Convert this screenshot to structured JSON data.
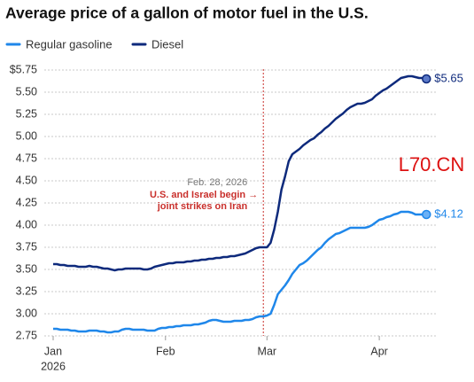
{
  "chart_data": {
    "type": "line",
    "title": "Average price of a gallon of motor fuel in the U.S.",
    "categories": [
      "Jan",
      null,
      null,
      null,
      null,
      null,
      null,
      null,
      null,
      null,
      null,
      null,
      null,
      null,
      null,
      null,
      null,
      null,
      null,
      null,
      null,
      null,
      null,
      null,
      null,
      null,
      null,
      null,
      null,
      null,
      null,
      "Feb",
      null,
      null,
      null,
      null,
      null,
      null,
      null,
      null,
      null,
      null,
      null,
      null,
      null,
      null,
      null,
      null,
      null,
      null,
      null,
      null,
      null,
      null,
      null,
      null,
      null,
      null,
      null,
      "Mar",
      null,
      null,
      null,
      null,
      null,
      null,
      null,
      null,
      null,
      null,
      null,
      null,
      null,
      null,
      null,
      null,
      null,
      null,
      null,
      null,
      null,
      null,
      null,
      null,
      null,
      null,
      null,
      null,
      null,
      null,
      "Apr",
      null,
      null,
      null,
      null,
      null,
      null,
      null,
      null,
      null,
      null,
      null,
      null,
      null
    ],
    "year_label": "2026",
    "series": [
      {
        "name": "Regular gasoline",
        "color": "#1f87ea",
        "end_label": "$4.12",
        "values": [
          2.83,
          2.83,
          2.82,
          2.82,
          2.82,
          2.81,
          2.81,
          2.8,
          2.8,
          2.8,
          2.81,
          2.81,
          2.81,
          2.8,
          2.8,
          2.79,
          2.79,
          2.8,
          2.8,
          2.82,
          2.83,
          2.83,
          2.82,
          2.82,
          2.82,
          2.82,
          2.81,
          2.81,
          2.81,
          2.83,
          2.84,
          2.84,
          2.85,
          2.85,
          2.86,
          2.86,
          2.87,
          2.87,
          2.87,
          2.88,
          2.88,
          2.89,
          2.9,
          2.92,
          2.93,
          2.93,
          2.92,
          2.91,
          2.91,
          2.91,
          2.92,
          2.92,
          2.92,
          2.93,
          2.93,
          2.94,
          2.96,
          2.97,
          2.97,
          2.98,
          3.0,
          3.1,
          3.22,
          3.27,
          3.32,
          3.38,
          3.45,
          3.5,
          3.55,
          3.57,
          3.6,
          3.64,
          3.68,
          3.72,
          3.75,
          3.8,
          3.84,
          3.87,
          3.9,
          3.91,
          3.93,
          3.95,
          3.97,
          3.97,
          3.97,
          3.97,
          3.97,
          3.98,
          4.0,
          4.03,
          4.06,
          4.07,
          4.09,
          4.1,
          4.12,
          4.13,
          4.15,
          4.15,
          4.15,
          4.14,
          4.12,
          4.12,
          4.12,
          4.12
        ]
      },
      {
        "name": "Diesel",
        "color": "#0e2a7c",
        "end_label": "$5.65",
        "values": [
          3.56,
          3.56,
          3.55,
          3.55,
          3.54,
          3.54,
          3.54,
          3.53,
          3.53,
          3.53,
          3.54,
          3.53,
          3.53,
          3.52,
          3.51,
          3.51,
          3.5,
          3.49,
          3.5,
          3.5,
          3.51,
          3.51,
          3.51,
          3.51,
          3.51,
          3.5,
          3.5,
          3.51,
          3.53,
          3.54,
          3.55,
          3.56,
          3.57,
          3.57,
          3.58,
          3.58,
          3.58,
          3.59,
          3.59,
          3.6,
          3.6,
          3.61,
          3.61,
          3.62,
          3.62,
          3.63,
          3.63,
          3.64,
          3.64,
          3.65,
          3.65,
          3.66,
          3.67,
          3.68,
          3.7,
          3.72,
          3.74,
          3.75,
          3.75,
          3.75,
          3.8,
          3.95,
          4.15,
          4.4,
          4.55,
          4.72,
          4.8,
          4.83,
          4.86,
          4.9,
          4.93,
          4.96,
          4.98,
          5.02,
          5.05,
          5.09,
          5.12,
          5.16,
          5.2,
          5.23,
          5.26,
          5.3,
          5.33,
          5.35,
          5.37,
          5.37,
          5.38,
          5.4,
          5.42,
          5.46,
          5.49,
          5.52,
          5.54,
          5.57,
          5.6,
          5.63,
          5.66,
          5.67,
          5.68,
          5.68,
          5.67,
          5.66,
          5.66,
          5.65
        ]
      }
    ],
    "ylim": [
      2.75,
      5.75
    ],
    "yticks": [
      {
        "value": 5.75,
        "label": "$5.75"
      },
      {
        "value": 5.5,
        "label": "5.50"
      },
      5.25,
      {
        "value": 5,
        "label": "5.00"
      },
      4.75,
      {
        "value": 4.5,
        "label": "4.50"
      },
      4.25,
      {
        "value": 4,
        "label": "4.00"
      },
      3.75,
      {
        "value": 3.5,
        "label": "3.50"
      },
      3.25,
      {
        "value": 3,
        "label": "3.00"
      },
      2.75
    ],
    "grid": true,
    "event": {
      "category_index": 58,
      "date": "Feb. 28, 2026",
      "text": [
        "U.S. and Israel begin →",
        "joint strikes on Iran"
      ]
    },
    "watermark": "L70.CN"
  }
}
